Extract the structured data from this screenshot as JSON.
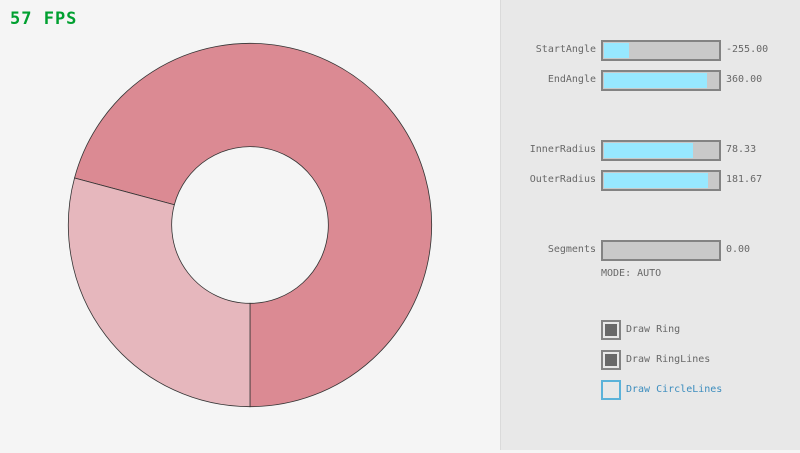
{
  "fps": "57 FPS",
  "ring": {
    "start_angle": -255,
    "end_angle": 360,
    "inner_radius": 78.33,
    "outer_radius": 181.67,
    "overlap_color": "#db8a93",
    "single_color": "#e6b7bd"
  },
  "sliders": [
    {
      "label": "StartAngle",
      "value": "-255.00",
      "fraction": 0.217
    },
    {
      "label": "EndAngle",
      "value": "360.00",
      "fraction": 0.9
    },
    {
      "label": "InnerRadius",
      "value": "78.33",
      "fraction": 0.783
    },
    {
      "label": "OuterRadius",
      "value": "181.67",
      "fraction": 0.908
    },
    {
      "label": "Segments",
      "value": "0.00",
      "fraction": 0
    }
  ],
  "mode": "MODE: AUTO",
  "checkboxes": [
    {
      "label": "Draw Ring",
      "checked": true
    },
    {
      "label": "Draw RingLines",
      "checked": true
    },
    {
      "label": "Draw CircleLines",
      "checked": false
    }
  ]
}
